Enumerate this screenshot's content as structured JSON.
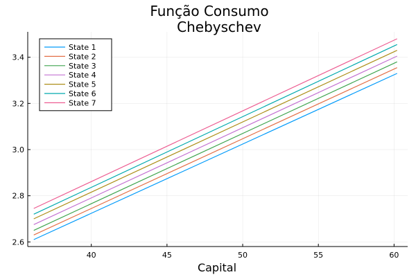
{
  "chart_data": {
    "type": "line",
    "title": "Função Consumo",
    "subtitle": "Chebyschev",
    "xlabel": "Capital",
    "ylabel": "",
    "xlim": [
      35.8,
      60.9
    ],
    "ylim": [
      2.58,
      3.51
    ],
    "xticks": [
      40,
      45,
      50,
      55,
      60
    ],
    "yticks": [
      2.6,
      2.8,
      3.0,
      3.2,
      3.4
    ],
    "xtick_labels": [
      "40",
      "45",
      "50",
      "55",
      "60"
    ],
    "ytick_labels": [
      "2.6",
      "2.8",
      "3.0",
      "3.2",
      "3.4"
    ],
    "grid": true,
    "legend_position": "top-left",
    "x": [
      36.2,
      60.2
    ],
    "series": [
      {
        "name": "State 1",
        "color": "#009AFA",
        "values": [
          2.61,
          3.33
        ]
      },
      {
        "name": "State 2",
        "color": "#E36F47",
        "values": [
          2.63,
          3.355
        ]
      },
      {
        "name": "State 3",
        "color": "#3EA44E",
        "values": [
          2.65,
          3.38
        ]
      },
      {
        "name": "State 4",
        "color": "#C371D2",
        "values": [
          2.675,
          3.405
        ]
      },
      {
        "name": "State 5",
        "color": "#AC8E18",
        "values": [
          2.7,
          3.43
        ]
      },
      {
        "name": "State 6",
        "color": "#00A9AD",
        "values": [
          2.72,
          3.455
        ]
      },
      {
        "name": "State 7",
        "color": "#ED5D92",
        "values": [
          2.745,
          3.48
        ]
      }
    ]
  }
}
